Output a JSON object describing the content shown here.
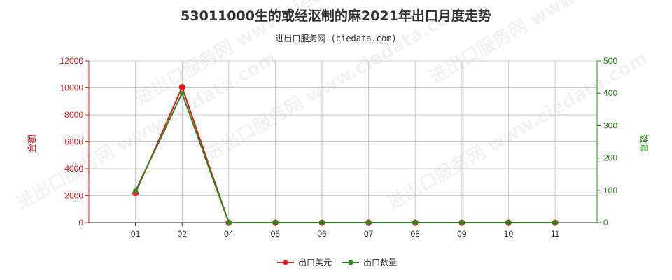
{
  "title": "53011000生的或经沤制的麻2021年出口月度走势",
  "subtitle": "进出口服务网 (ciedata.com)",
  "watermark": "进出口服务网 www.ciedata.com",
  "colors": {
    "usd": "#e8191b",
    "qty": "#2a8a1a",
    "grid": "#cccccc",
    "axis_left": "#e8191b",
    "axis_right": "#2a8a1a"
  },
  "chart_data": {
    "type": "line",
    "categories": [
      "01",
      "02",
      "04",
      "05",
      "06",
      "07",
      "08",
      "09",
      "10",
      "11"
    ],
    "ylabel_left": "金额",
    "ylabel_right": "数量",
    "ylim_left": [
      0,
      12000
    ],
    "ylim_right": [
      0,
      500
    ],
    "yticks_left": [
      "0",
      "2000",
      "4000",
      "6000",
      "8000",
      "10000",
      "12000"
    ],
    "yticks_right": [
      "0",
      "100",
      "200",
      "300",
      "400",
      "500"
    ],
    "grid": true,
    "legend_position": "bottom",
    "series": [
      {
        "name": "出口美元",
        "axis": "left",
        "color": "#e8191b",
        "values": [
          2200,
          10050,
          0,
          0,
          0,
          0,
          0,
          0,
          0,
          0
        ]
      },
      {
        "name": "出口数量",
        "axis": "right",
        "color": "#2a8a1a",
        "values": [
          98,
          400,
          0,
          0,
          0,
          0,
          0,
          0,
          0,
          0
        ]
      }
    ]
  }
}
